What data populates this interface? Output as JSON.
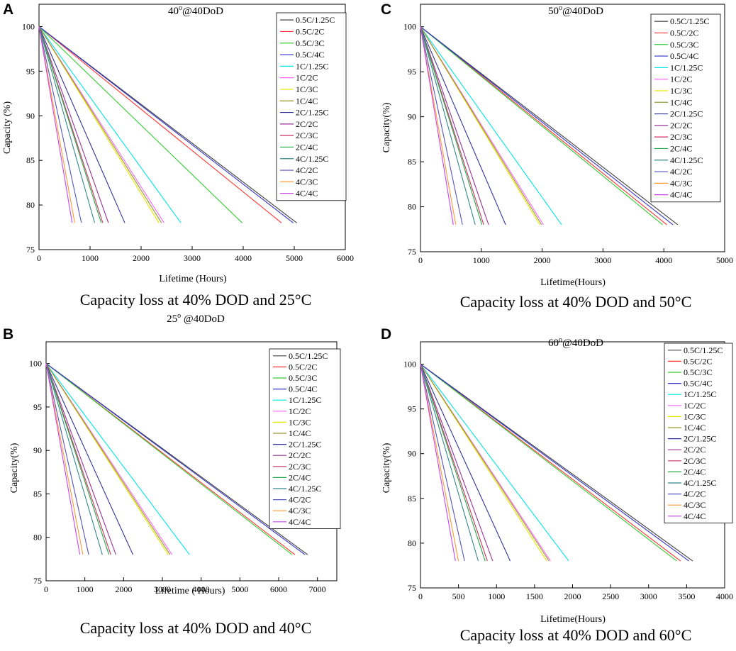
{
  "figure": {
    "panels": [
      "A",
      "C",
      "B",
      "D"
    ],
    "captions": [
      "Capacity loss at 40% DOD and 25°C",
      "Capacity loss at 40% DOD and 50°C",
      "Capacity loss at 40% DOD and 40°C",
      "Capacity loss at 40% DOD and 60°C"
    ]
  },
  "colors": {
    "series": [
      "#404040",
      "#ff3333",
      "#33cc33",
      "#3333cc",
      "#00e6e6",
      "#ff66ff",
      "#e6e600",
      "#999933",
      "#333399",
      "#993399",
      "#cc3366",
      "#22aa44",
      "#338888",
      "#5555bb",
      "#ff9933",
      "#cc44ee"
    ]
  },
  "chart_data": [
    {
      "type": "line",
      "panel": "A",
      "title": "40º@40DoD",
      "xlabel": "Lifetime (Hours)",
      "ylabel": "Capacity (%)",
      "xlim": [
        0,
        6000
      ],
      "ylim": [
        75,
        102.5
      ],
      "xticks": [
        0,
        1000,
        2000,
        3000,
        4000,
        5000,
        6000
      ],
      "yticks": [
        75,
        80,
        85,
        90,
        95,
        100
      ],
      "series": [
        {
          "name": "0.5C/1.25C",
          "x": [
            0,
            5050
          ],
          "y": [
            100,
            78
          ]
        },
        {
          "name": "0.5C/2C",
          "x": [
            0,
            4750
          ],
          "y": [
            100,
            78
          ]
        },
        {
          "name": "0.5C/3C",
          "x": [
            0,
            3980
          ],
          "y": [
            100,
            78
          ]
        },
        {
          "name": "0.5C/4C",
          "x": [
            0,
            4980
          ],
          "y": [
            100,
            78
          ]
        },
        {
          "name": "1C/1.25C",
          "x": [
            0,
            2780
          ],
          "y": [
            100,
            78
          ]
        },
        {
          "name": "1C/2C",
          "x": [
            0,
            2450
          ],
          "y": [
            100,
            78
          ]
        },
        {
          "name": "1C/3C",
          "x": [
            0,
            2350
          ],
          "y": [
            100,
            78
          ]
        },
        {
          "name": "1C/4C",
          "x": [
            0,
            2400
          ],
          "y": [
            100,
            78
          ]
        },
        {
          "name": "2C/1.25C",
          "x": [
            0,
            1680
          ],
          "y": [
            100,
            78
          ]
        },
        {
          "name": "2C/2C",
          "x": [
            0,
            1360
          ],
          "y": [
            100,
            78
          ]
        },
        {
          "name": "2C/3C",
          "x": [
            0,
            1250
          ],
          "y": [
            100,
            78
          ]
        },
        {
          "name": "2C/4C",
          "x": [
            0,
            1220
          ],
          "y": [
            100,
            78
          ]
        },
        {
          "name": "4C/1.25C",
          "x": [
            0,
            1090
          ],
          "y": [
            100,
            78
          ]
        },
        {
          "name": "4C/2C",
          "x": [
            0,
            830
          ],
          "y": [
            100,
            78
          ]
        },
        {
          "name": "4C/3C",
          "x": [
            0,
            700
          ],
          "y": [
            100,
            78
          ]
        },
        {
          "name": "4C/4C",
          "x": [
            0,
            650
          ],
          "y": [
            100,
            78
          ]
        }
      ]
    },
    {
      "type": "line",
      "panel": "C",
      "title": "50º@40DoD",
      "xlabel": "Lifetime(Hours)",
      "ylabel": "Capacity(%)",
      "xlim": [
        0,
        5000
      ],
      "ylim": [
        75,
        102.5
      ],
      "xticks": [
        0,
        1000,
        2000,
        3000,
        4000,
        5000
      ],
      "yticks": [
        75,
        80,
        85,
        90,
        95,
        100
      ],
      "series": [
        {
          "name": "0.5C/1.25C",
          "x": [
            0,
            4230
          ],
          "y": [
            100,
            78
          ]
        },
        {
          "name": "0.5C/2C",
          "x": [
            0,
            4050
          ],
          "y": [
            100,
            78
          ]
        },
        {
          "name": "0.5C/3C",
          "x": [
            0,
            3980
          ],
          "y": [
            100,
            78
          ]
        },
        {
          "name": "0.5C/4C",
          "x": [
            0,
            4150
          ],
          "y": [
            100,
            78
          ]
        },
        {
          "name": "1C/1.25C",
          "x": [
            0,
            2320
          ],
          "y": [
            100,
            78
          ]
        },
        {
          "name": "1C/2C",
          "x": [
            0,
            2020
          ],
          "y": [
            100,
            78
          ]
        },
        {
          "name": "1C/3C",
          "x": [
            0,
            1960
          ],
          "y": [
            100,
            78
          ]
        },
        {
          "name": "1C/4C",
          "x": [
            0,
            1990
          ],
          "y": [
            100,
            78
          ]
        },
        {
          "name": "2C/1.25C",
          "x": [
            0,
            1400
          ],
          "y": [
            100,
            78
          ]
        },
        {
          "name": "2C/2C",
          "x": [
            0,
            1120
          ],
          "y": [
            100,
            78
          ]
        },
        {
          "name": "2C/3C",
          "x": [
            0,
            1040
          ],
          "y": [
            100,
            78
          ]
        },
        {
          "name": "2C/4C",
          "x": [
            0,
            1010
          ],
          "y": [
            100,
            78
          ]
        },
        {
          "name": "4C/1.25C",
          "x": [
            0,
            900
          ],
          "y": [
            100,
            78
          ]
        },
        {
          "name": "4C/2C",
          "x": [
            0,
            690
          ],
          "y": [
            100,
            78
          ]
        },
        {
          "name": "4C/3C",
          "x": [
            0,
            580
          ],
          "y": [
            100,
            78
          ]
        },
        {
          "name": "4C/4C",
          "x": [
            0,
            540
          ],
          "y": [
            100,
            78
          ]
        }
      ]
    },
    {
      "type": "line",
      "panel": "B",
      "title": "25º @40DoD",
      "xlabel": "Lifetime ( Hours)",
      "ylabel": "Capacity(%)",
      "xlim": [
        0,
        7500
      ],
      "ylim": [
        75,
        102.5
      ],
      "xticks": [
        0,
        1000,
        2000,
        3000,
        4000,
        5000,
        6000,
        7000
      ],
      "yticks": [
        75,
        80,
        85,
        90,
        95,
        100
      ],
      "series": [
        {
          "name": "0.5C/1.25C",
          "x": [
            0,
            6750
          ],
          "y": [
            100,
            78
          ]
        },
        {
          "name": "0.5C/2C",
          "x": [
            0,
            6420
          ],
          "y": [
            100,
            78
          ]
        },
        {
          "name": "0.5C/3C",
          "x": [
            0,
            6350
          ],
          "y": [
            100,
            78
          ]
        },
        {
          "name": "0.5C/4C",
          "x": [
            0,
            6680
          ],
          "y": [
            100,
            78
          ]
        },
        {
          "name": "1C/1.25C",
          "x": [
            0,
            3700
          ],
          "y": [
            100,
            78
          ]
        },
        {
          "name": "1C/2C",
          "x": [
            0,
            3250
          ],
          "y": [
            100,
            78
          ]
        },
        {
          "name": "1C/3C",
          "x": [
            0,
            3150
          ],
          "y": [
            100,
            78
          ]
        },
        {
          "name": "1C/4C",
          "x": [
            0,
            3200
          ],
          "y": [
            100,
            78
          ]
        },
        {
          "name": "2C/1.25C",
          "x": [
            0,
            2240
          ],
          "y": [
            100,
            78
          ]
        },
        {
          "name": "2C/2C",
          "x": [
            0,
            1800
          ],
          "y": [
            100,
            78
          ]
        },
        {
          "name": "2C/3C",
          "x": [
            0,
            1670
          ],
          "y": [
            100,
            78
          ]
        },
        {
          "name": "2C/4C",
          "x": [
            0,
            1620
          ],
          "y": [
            100,
            78
          ]
        },
        {
          "name": "4C/1.25C",
          "x": [
            0,
            1450
          ],
          "y": [
            100,
            78
          ]
        },
        {
          "name": "4C/2C",
          "x": [
            0,
            1100
          ],
          "y": [
            100,
            78
          ]
        },
        {
          "name": "4C/3C",
          "x": [
            0,
            950
          ],
          "y": [
            100,
            78
          ]
        },
        {
          "name": "4C/4C",
          "x": [
            0,
            870
          ],
          "y": [
            100,
            78
          ]
        }
      ]
    },
    {
      "type": "line",
      "panel": "D",
      "title": "60º@40DoD",
      "xlabel": "Lifetime(Hours)",
      "ylabel": "Capacity(%)",
      "xlim": [
        0,
        4000
      ],
      "ylim": [
        75,
        102.5
      ],
      "xticks": [
        0,
        500,
        1000,
        1500,
        2000,
        2500,
        3000,
        3500,
        4000
      ],
      "yticks": [
        75,
        80,
        85,
        90,
        95,
        100
      ],
      "series": [
        {
          "name": "0.5C/1.25C",
          "x": [
            0,
            3580
          ],
          "y": [
            100,
            78
          ]
        },
        {
          "name": "0.5C/2C",
          "x": [
            0,
            3420
          ],
          "y": [
            100,
            78
          ]
        },
        {
          "name": "0.5C/3C",
          "x": [
            0,
            3370
          ],
          "y": [
            100,
            78
          ]
        },
        {
          "name": "0.5C/4C",
          "x": [
            0,
            3530
          ],
          "y": [
            100,
            78
          ]
        },
        {
          "name": "1C/1.25C",
          "x": [
            0,
            1950
          ],
          "y": [
            100,
            78
          ]
        },
        {
          "name": "1C/2C",
          "x": [
            0,
            1710
          ],
          "y": [
            100,
            78
          ]
        },
        {
          "name": "1C/3C",
          "x": [
            0,
            1660
          ],
          "y": [
            100,
            78
          ]
        },
        {
          "name": "1C/4C",
          "x": [
            0,
            1690
          ],
          "y": [
            100,
            78
          ]
        },
        {
          "name": "2C/1.25C",
          "x": [
            0,
            1180
          ],
          "y": [
            100,
            78
          ]
        },
        {
          "name": "2C/2C",
          "x": [
            0,
            950
          ],
          "y": [
            100,
            78
          ]
        },
        {
          "name": "2C/3C",
          "x": [
            0,
            880
          ],
          "y": [
            100,
            78
          ]
        },
        {
          "name": "2C/4C",
          "x": [
            0,
            850
          ],
          "y": [
            100,
            78
          ]
        },
        {
          "name": "4C/1.25C",
          "x": [
            0,
            760
          ],
          "y": [
            100,
            78
          ]
        },
        {
          "name": "4C/2C",
          "x": [
            0,
            580
          ],
          "y": [
            100,
            78
          ]
        },
        {
          "name": "4C/3C",
          "x": [
            0,
            500
          ],
          "y": [
            100,
            78
          ]
        },
        {
          "name": "4C/4C",
          "x": [
            0,
            460
          ],
          "y": [
            100,
            78
          ]
        }
      ]
    }
  ]
}
